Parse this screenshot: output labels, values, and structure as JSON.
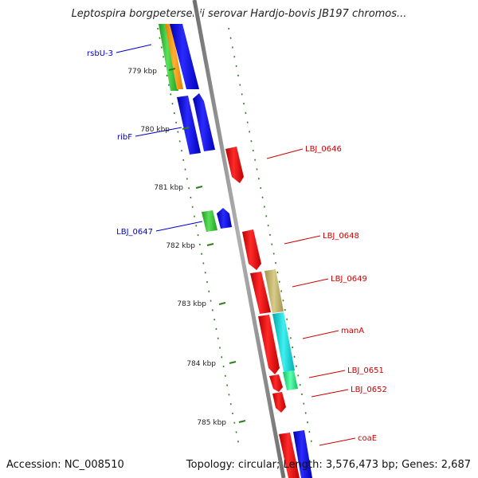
{
  "title": "Leptospira borgpetersenii serovar Hardjo-bovis JB197 chromos...",
  "footer": {
    "accession": "Accession: NC_008510",
    "summary": "Topology: circular; Length: 3,576,473 bp; Genes: 2,687"
  },
  "colors": {
    "backbone": "#8c8c8c",
    "tick": "#2e7d1e",
    "forward_label": "#0000cc",
    "reverse_label": "#cc0000"
  },
  "kbp_ticks": [
    "779 kbp",
    "780 kbp",
    "781 kbp",
    "782 kbp",
    "783 kbp",
    "784 kbp",
    "785 kbp"
  ],
  "gene_labels": [
    {
      "text": "rsbU-3",
      "strand": "forward"
    },
    {
      "text": "ribF",
      "strand": "forward"
    },
    {
      "text": "LBJ_0647",
      "strand": "forward"
    },
    {
      "text": "LBJ_0646",
      "strand": "reverse"
    },
    {
      "text": "LBJ_0648",
      "strand": "reverse"
    },
    {
      "text": "LBJ_0649",
      "strand": "reverse"
    },
    {
      "text": "manA",
      "strand": "reverse"
    },
    {
      "text": "LBJ_0651",
      "strand": "reverse"
    },
    {
      "text": "LBJ_0652",
      "strand": "reverse"
    },
    {
      "text": "coaE",
      "strand": "reverse"
    }
  ]
}
